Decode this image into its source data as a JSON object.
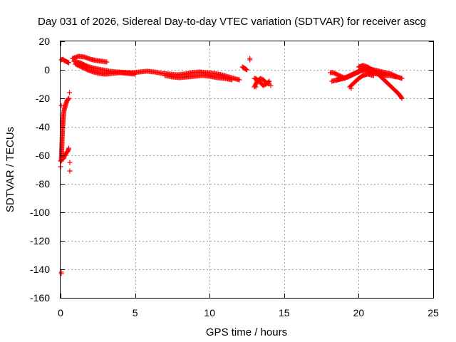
{
  "chart_data": {
    "type": "scatter",
    "title": "Day 031 of 2026, Sidereal Day-to-day VTEC variation (SDTVAR) for receiver ascg",
    "xlabel": "GPS time / hours",
    "ylabel": "SDTVAR / TECUs",
    "xlim": [
      0,
      25
    ],
    "ylim": [
      -160,
      20
    ],
    "xticks": [
      0,
      5,
      10,
      15,
      20,
      25
    ],
    "yticks": [
      20,
      0,
      -20,
      -40,
      -60,
      -80,
      -100,
      -120,
      -140,
      -160
    ],
    "grid": true,
    "marker": "+",
    "color": "#ff0000",
    "series": [
      {
        "name": "SDTVAR",
        "tracks": [
          [
            [
              0.0,
              -64
            ],
            [
              0.1,
              -63
            ],
            [
              0.2,
              -62
            ],
            [
              0.3,
              -60
            ],
            [
              0.4,
              -58
            ],
            [
              0.5,
              -57
            ],
            [
              0.55,
              -55
            ]
          ],
          [
            [
              0.05,
              -64
            ],
            [
              0.08,
              -55
            ],
            [
              0.11,
              -47
            ],
            [
              0.14,
              -40
            ],
            [
              0.17,
              -35
            ],
            [
              0.2,
              -31
            ],
            [
              0.24,
              -28
            ],
            [
              0.3,
              -26
            ],
            [
              0.36,
              -24
            ],
            [
              0.42,
              -22
            ],
            [
              0.48,
              -21
            ],
            [
              0.55,
              -20
            ]
          ],
          [
            [
              0.05,
              7
            ],
            [
              0.15,
              7.5
            ],
            [
              0.25,
              6.5
            ],
            [
              0.35,
              6
            ],
            [
              0.45,
              5.5
            ],
            [
              0.55,
              5
            ]
          ],
          [
            [
              0.8,
              8
            ],
            [
              1.2,
              9.5
            ],
            [
              1.6,
              9
            ],
            [
              2.0,
              7.5
            ],
            [
              2.4,
              6.5
            ],
            [
              2.8,
              6
            ],
            [
              3.1,
              5.5
            ]
          ],
          [
            [
              0.9,
              6
            ],
            [
              1.3,
              5
            ],
            [
              1.8,
              2.5
            ],
            [
              2.3,
              1
            ],
            [
              2.8,
              0
            ],
            [
              3.3,
              -1
            ],
            [
              3.8,
              -1.5
            ],
            [
              4.3,
              -1.8
            ],
            [
              4.8,
              -2
            ],
            [
              5.3,
              -1.5
            ],
            [
              5.8,
              -1
            ],
            [
              6.3,
              -1.5
            ],
            [
              6.8,
              -2.5
            ],
            [
              7.3,
              -3
            ],
            [
              7.8,
              -3.5
            ],
            [
              8.3,
              -3
            ],
            [
              8.8,
              -2
            ],
            [
              9.3,
              -1.5
            ],
            [
              9.8,
              -2
            ],
            [
              10.3,
              -2.5
            ],
            [
              10.8,
              -3.5
            ],
            [
              11.3,
              -5
            ],
            [
              11.8,
              -6.5
            ],
            [
              12.0,
              -7
            ]
          ],
          [
            [
              1.0,
              4
            ],
            [
              1.4,
              2
            ],
            [
              1.8,
              0
            ],
            [
              2.2,
              -1.5
            ],
            [
              2.6,
              -2.5
            ],
            [
              3.0,
              -3
            ],
            [
              3.5,
              -2.5
            ],
            [
              4.0,
              -2
            ],
            [
              4.5,
              -2.5
            ],
            [
              5.0,
              -3
            ]
          ],
          [
            [
              7.0,
              -4
            ],
            [
              7.5,
              -5
            ],
            [
              8.0,
              -5.5
            ],
            [
              8.5,
              -5
            ],
            [
              9.0,
              -4.5
            ],
            [
              9.5,
              -4
            ],
            [
              10.0,
              -4.5
            ],
            [
              10.5,
              -5.5
            ],
            [
              11.0,
              -6
            ],
            [
              11.5,
              -7
            ]
          ],
          [
            [
              12.2,
              2
            ],
            [
              12.35,
              1
            ],
            [
              12.5,
              0
            ]
          ],
          [
            [
              13.0,
              -12
            ],
            [
              13.2,
              -8
            ],
            [
              13.4,
              -6
            ],
            [
              13.6,
              -7
            ],
            [
              13.8,
              -9
            ],
            [
              14.0,
              -10
            ]
          ],
          [
            [
              13.0,
              -6
            ],
            [
              13.2,
              -7
            ],
            [
              13.4,
              -9
            ],
            [
              13.6,
              -11
            ],
            [
              13.8,
              -10
            ],
            [
              14.0,
              -8
            ]
          ],
          [
            [
              18.1,
              -2
            ],
            [
              18.3,
              -2
            ],
            [
              18.5,
              -3
            ],
            [
              18.7,
              -4
            ],
            [
              18.9,
              -5
            ],
            [
              19.1,
              -6
            ]
          ],
          [
            [
              18.2,
              -8
            ],
            [
              18.6,
              -7
            ],
            [
              19.0,
              -6
            ],
            [
              19.4,
              -4
            ],
            [
              19.8,
              -2
            ],
            [
              20.2,
              0
            ],
            [
              20.6,
              1
            ],
            [
              21.0,
              0
            ],
            [
              21.4,
              -1
            ],
            [
              21.8,
              -2
            ],
            [
              22.2,
              -3
            ],
            [
              22.6,
              -5
            ],
            [
              22.9,
              -6
            ]
          ],
          [
            [
              18.5,
              -7
            ],
            [
              18.9,
              -6
            ],
            [
              19.3,
              -5
            ],
            [
              19.7,
              -3
            ],
            [
              20.1,
              -1
            ],
            [
              20.5,
              0
            ],
            [
              20.9,
              -2
            ],
            [
              21.3,
              -3
            ],
            [
              21.7,
              -4
            ],
            [
              22.1,
              -4
            ],
            [
              22.5,
              -5
            ]
          ],
          [
            [
              19.4,
              -12
            ],
            [
              19.7,
              -9
            ],
            [
              20.0,
              -6
            ],
            [
              20.3,
              -4
            ],
            [
              20.6,
              -3
            ],
            [
              21.0,
              -4
            ]
          ],
          [
            [
              20.0,
              2
            ],
            [
              20.3,
              3
            ],
            [
              20.6,
              2
            ],
            [
              20.9,
              0
            ],
            [
              21.2,
              -2
            ],
            [
              21.5,
              -5
            ],
            [
              21.8,
              -8
            ],
            [
              22.1,
              -11
            ],
            [
              22.4,
              -14
            ],
            [
              22.7,
              -17
            ],
            [
              22.9,
              -20
            ]
          ]
        ],
        "points": [
          [
            0.6,
            -16
          ],
          [
            0.62,
            -65
          ],
          [
            0.62,
            -71
          ],
          [
            0.05,
            -142
          ],
          [
            0.05,
            -143
          ],
          [
            0.0,
            -68
          ],
          [
            0.05,
            -25
          ],
          [
            12.7,
            7
          ],
          [
            12.7,
            8
          ],
          [
            13.1,
            -12
          ],
          [
            13.1,
            -6
          ],
          [
            14.1,
            -11
          ],
          [
            19.5,
            -13
          ],
          [
            22.9,
            -20
          ]
        ]
      }
    ]
  }
}
